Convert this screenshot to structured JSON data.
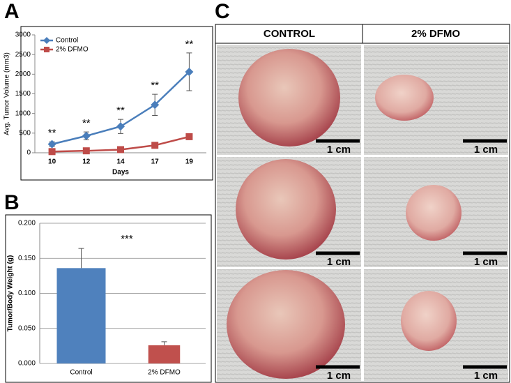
{
  "panel_labels": [
    "A",
    "B",
    "C"
  ],
  "chart_data": [
    {
      "type": "line",
      "xlabel": "Days",
      "ylabel": "Avg. Tumor Volume (mm3)",
      "categories": [
        10,
        12,
        14,
        17,
        19
      ],
      "ylim": [
        0,
        3000
      ],
      "yticks": [
        0,
        500,
        1000,
        1500,
        2000,
        2500,
        3000
      ],
      "legend": "upper left",
      "series": [
        {
          "name": "Control",
          "color": "#4a7ebb",
          "marker": "diamond",
          "values": [
            220,
            430,
            670,
            1220,
            2060
          ],
          "errors": [
            60,
            100,
            180,
            270,
            480
          ]
        },
        {
          "name": "2% DFMO",
          "color": "#be4b48",
          "marker": "square",
          "values": [
            30,
            50,
            80,
            190,
            410
          ],
          "errors": [
            15,
            20,
            20,
            30,
            40
          ]
        }
      ],
      "annotations": [
        "**",
        "**",
        "**",
        "**",
        "**"
      ]
    },
    {
      "type": "bar",
      "ylabel": "Tumor/Body Weight (g)",
      "categories": [
        "Control",
        "2% DFMO"
      ],
      "values": [
        0.136,
        0.026
      ],
      "errors": [
        0.028,
        0.005
      ],
      "colors": [
        "#4f81bd",
        "#c0504d"
      ],
      "ylim": [
        0,
        0.2
      ],
      "yticks": [
        {
          "value": 0,
          "label": "0.000"
        },
        {
          "value": 0.05,
          "label": "0.050"
        },
        {
          "value": 0.1,
          "label": "0.100"
        },
        {
          "value": 0.15,
          "label": "0.150"
        },
        {
          "value": 0.2,
          "label": "0.200"
        }
      ],
      "grid": true,
      "annotation": "***"
    }
  ],
  "photos": {
    "headers": [
      "CONTROL",
      "2% DFMO"
    ],
    "scale_labels": [
      "1 cm",
      "1 cm",
      "1 cm",
      "1 cm",
      "1 cm",
      "1 cm"
    ]
  }
}
